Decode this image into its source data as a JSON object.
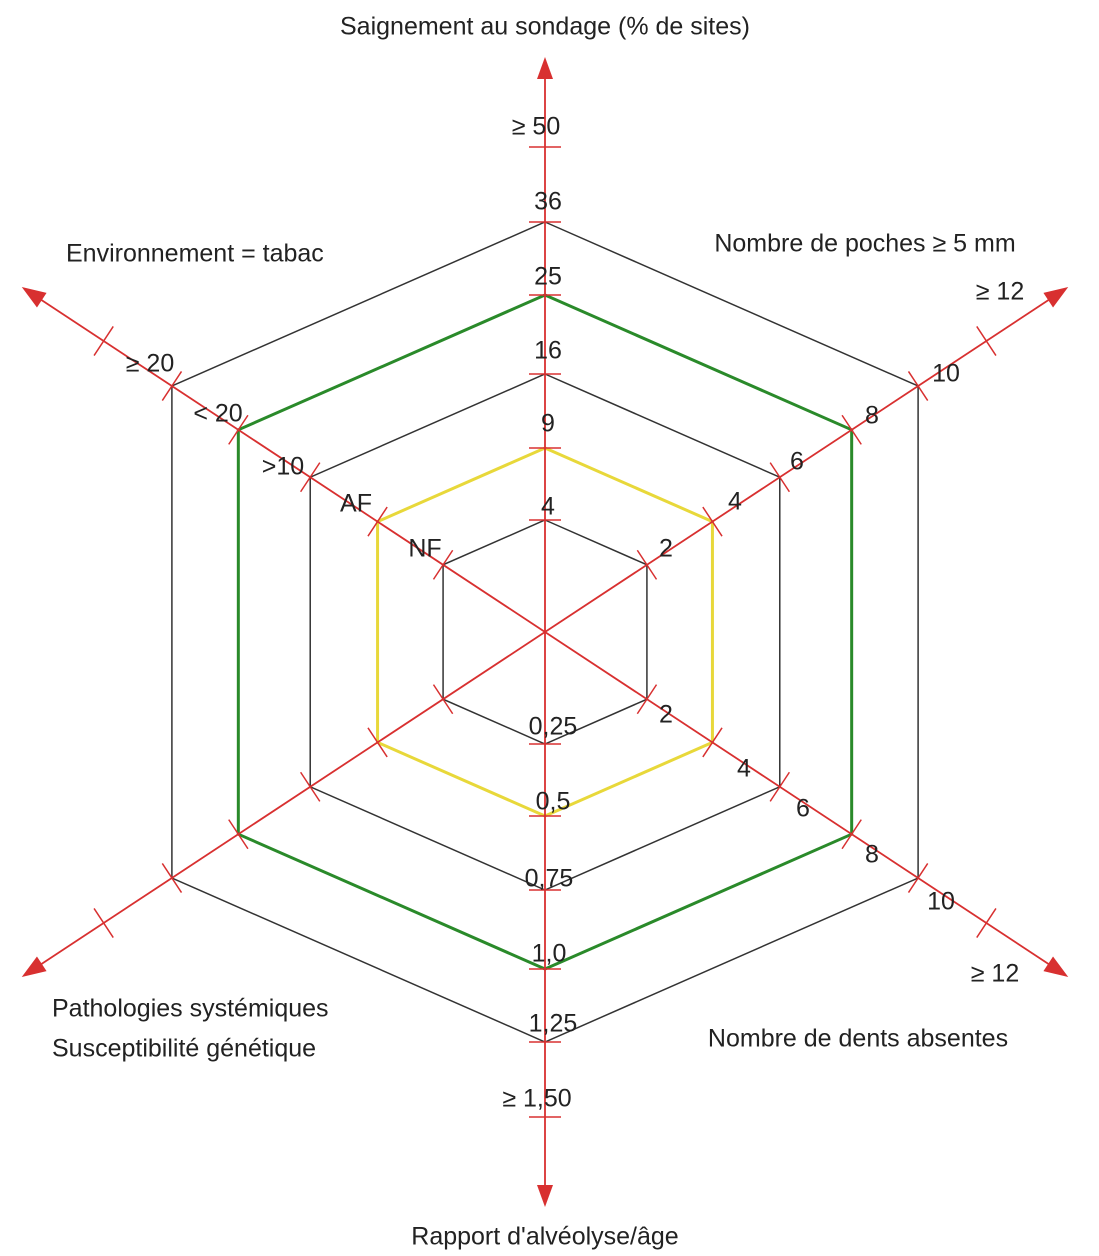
{
  "axes": [
    {
      "name": [
        "Saignement au sondage (% de sites)"
      ],
      "ticks": [
        "4",
        "9",
        "16",
        "25",
        "36",
        "≥ 50"
      ]
    },
    {
      "name": [
        "Nombre de poches ≥ 5 mm"
      ],
      "ticks": [
        "2",
        "4",
        "6",
        "8",
        "10",
        "≥ 12"
      ]
    },
    {
      "name": [
        "Nombre de dents absentes"
      ],
      "ticks": [
        "2",
        "4",
        "6",
        "8",
        "10",
        "≥ 12"
      ]
    },
    {
      "name": [
        "Rapport d'alvéolyse/âge"
      ],
      "ticks": [
        "0,25",
        "0,5",
        "0,75",
        "1,0",
        "1,25",
        "≥ 1,50"
      ]
    },
    {
      "name": [
        "Pathologies systémiques",
        "Susceptibilité génétique"
      ],
      "ticks": []
    },
    {
      "name": [
        "Environnement = tabac"
      ],
      "ticks": [
        "NF",
        "AF",
        ">10",
        "< 20",
        "≥ 20"
      ]
    }
  ]
}
